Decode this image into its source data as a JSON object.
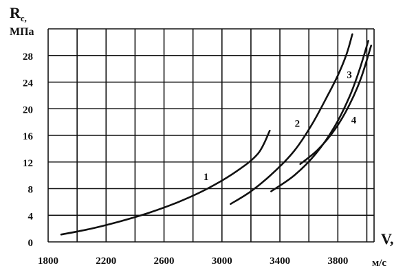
{
  "chart_data": {
    "type": "line",
    "ylabel": "R",
    "ylabel_subscript": "c,",
    "yunit": "МПа",
    "xlabel": "V,",
    "xunit": "м/с",
    "x_ticks": [
      "1800",
      "2200",
      "2600",
      "3000",
      "3400",
      "3800"
    ],
    "y_ticks": [
      "0",
      "4",
      "8",
      "12",
      "16",
      "20",
      "24",
      "28"
    ],
    "xlim": [
      1800,
      4050
    ],
    "ylim": [
      0,
      32
    ],
    "grid": true,
    "series": [
      {
        "name": "1",
        "label_at": [
          2890,
          9.3
        ],
        "points": [
          [
            1890,
            1.1
          ],
          [
            2100,
            2.0
          ],
          [
            2300,
            3.1
          ],
          [
            2500,
            4.4
          ],
          [
            2700,
            6.0
          ],
          [
            2900,
            8.0
          ],
          [
            3100,
            10.6
          ],
          [
            3250,
            13.3
          ],
          [
            3330,
            16.7
          ]
        ]
      },
      {
        "name": "2",
        "label_at": [
          3520,
          17.3
        ],
        "points": [
          [
            3060,
            5.7
          ],
          [
            3200,
            7.6
          ],
          [
            3350,
            10.3
          ],
          [
            3500,
            13.7
          ],
          [
            3620,
            17.6
          ],
          [
            3720,
            21.6
          ],
          [
            3800,
            25.0
          ],
          [
            3860,
            28.2
          ],
          [
            3900,
            31.2
          ]
        ]
      },
      {
        "name": "3",
        "label_at": [
          3880,
          24.6
        ],
        "points": [
          [
            3340,
            7.6
          ],
          [
            3500,
            10.0
          ],
          [
            3650,
            13.3
          ],
          [
            3780,
            17.4
          ],
          [
            3880,
            21.8
          ],
          [
            3950,
            25.9
          ],
          [
            4010,
            30.2
          ]
        ]
      },
      {
        "name": "4",
        "label_at": [
          3910,
          17.8
        ],
        "points": [
          [
            3540,
            11.7
          ],
          [
            3660,
            13.8
          ],
          [
            3780,
            16.9
          ],
          [
            3880,
            20.6
          ],
          [
            3960,
            24.6
          ],
          [
            4030,
            29.5
          ]
        ]
      }
    ]
  }
}
